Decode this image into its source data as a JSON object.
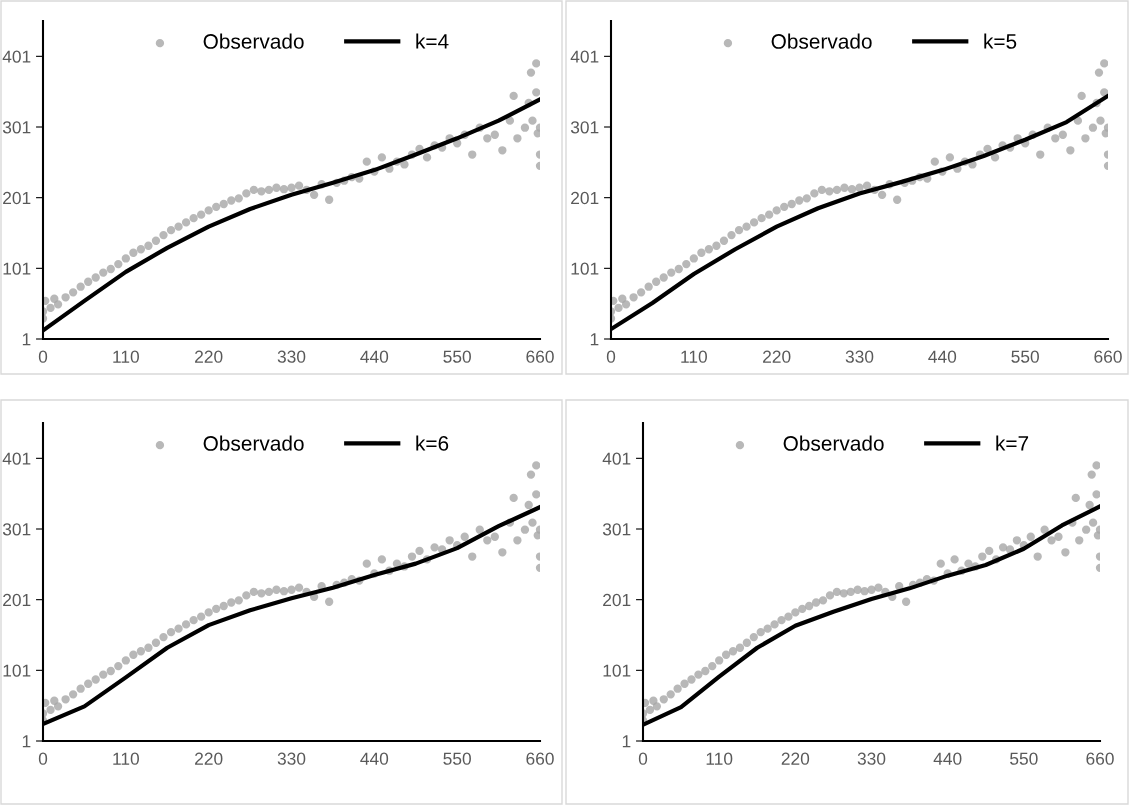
{
  "chart_data": [
    {
      "type": "scatter",
      "xlim": [
        0,
        660
      ],
      "ylim": [
        1,
        451
      ],
      "xticks": [
        0,
        110,
        220,
        330,
        440,
        550,
        660
      ],
      "yticks": [
        1,
        101,
        201,
        301,
        401
      ],
      "grid": false,
      "legend": "top",
      "marker": "circle",
      "series": [
        {
          "name": "Observado",
          "color": "#a6a6a6",
          "x": [
            0,
            0,
            3,
            10,
            15,
            20,
            30,
            40,
            50,
            60,
            70,
            80,
            90,
            100,
            110,
            120,
            130,
            140,
            150,
            160,
            170,
            180,
            190,
            200,
            210,
            220,
            230,
            240,
            250,
            260,
            270,
            280,
            290,
            300,
            310,
            320,
            330,
            340,
            350,
            360,
            370,
            380,
            390,
            400,
            410,
            420,
            430,
            440,
            450,
            460,
            470,
            480,
            490,
            500,
            510,
            520,
            530,
            540,
            550,
            560,
            570,
            580,
            590,
            600,
            610,
            620,
            625,
            630,
            640,
            645,
            648,
            650,
            655,
            655,
            657,
            660,
            660,
            660
          ],
          "values": [
            40,
            30,
            55,
            45,
            58,
            50,
            60,
            67,
            75,
            82,
            88,
            95,
            100,
            107,
            115,
            123,
            128,
            133,
            140,
            148,
            155,
            160,
            166,
            172,
            177,
            183,
            188,
            192,
            197,
            200,
            207,
            212,
            210,
            212,
            215,
            213,
            215,
            218,
            212,
            205,
            220,
            198,
            222,
            225,
            230,
            228,
            252,
            238,
            258,
            242,
            252,
            248,
            262,
            270,
            258,
            275,
            272,
            285,
            278,
            290,
            262,
            300,
            285,
            290,
            268,
            310,
            345,
            285,
            300,
            335,
            378,
            310,
            350,
            391,
            292,
            300,
            262,
            246
          ]
        },
        {
          "name": "k=4",
          "type": "line",
          "marker": "none",
          "color": "#000000",
          "x": [
            0,
            55,
            110,
            165,
            220,
            275,
            330,
            385,
            440,
            495,
            550,
            605,
            660
          ],
          "values": [
            13,
            55,
            96,
            130,
            160,
            185,
            205,
            222,
            240,
            262,
            285,
            310,
            340
          ]
        }
      ]
    },
    {
      "type": "scatter",
      "xlim": [
        0,
        660
      ],
      "ylim": [
        1,
        451
      ],
      "xticks": [
        0,
        110,
        220,
        330,
        440,
        550,
        660
      ],
      "yticks": [
        1,
        101,
        201,
        301,
        401
      ],
      "grid": false,
      "legend": "top",
      "marker": "circle",
      "series": [
        {
          "name": "Observado",
          "color": "#a6a6a6",
          "x": [
            0,
            0,
            3,
            10,
            15,
            20,
            30,
            40,
            50,
            60,
            70,
            80,
            90,
            100,
            110,
            120,
            130,
            140,
            150,
            160,
            170,
            180,
            190,
            200,
            210,
            220,
            230,
            240,
            250,
            260,
            270,
            280,
            290,
            300,
            310,
            320,
            330,
            340,
            350,
            360,
            370,
            380,
            390,
            400,
            410,
            420,
            430,
            440,
            450,
            460,
            470,
            480,
            490,
            500,
            510,
            520,
            530,
            540,
            550,
            560,
            570,
            580,
            590,
            600,
            610,
            620,
            625,
            630,
            640,
            645,
            648,
            650,
            655,
            655,
            657,
            660,
            660,
            660
          ],
          "values": [
            40,
            30,
            55,
            45,
            58,
            50,
            60,
            67,
            75,
            82,
            88,
            95,
            100,
            107,
            115,
            123,
            128,
            133,
            140,
            148,
            155,
            160,
            166,
            172,
            177,
            183,
            188,
            192,
            197,
            200,
            207,
            212,
            210,
            212,
            215,
            213,
            215,
            218,
            212,
            205,
            220,
            198,
            222,
            225,
            230,
            228,
            252,
            238,
            258,
            242,
            252,
            248,
            262,
            270,
            258,
            275,
            272,
            285,
            278,
            290,
            262,
            300,
            285,
            290,
            268,
            310,
            345,
            285,
            300,
            335,
            378,
            310,
            350,
            391,
            292,
            300,
            262,
            246
          ]
        },
        {
          "name": "k=5",
          "type": "line",
          "marker": "none",
          "color": "#000000",
          "x": [
            0,
            55,
            110,
            165,
            220,
            275,
            330,
            385,
            440,
            495,
            550,
            605,
            660
          ],
          "values": [
            15,
            52,
            93,
            128,
            160,
            186,
            207,
            223,
            240,
            260,
            283,
            308,
            345
          ]
        }
      ]
    },
    {
      "type": "scatter",
      "xlim": [
        0,
        660
      ],
      "ylim": [
        1,
        451
      ],
      "xticks": [
        0,
        110,
        220,
        330,
        440,
        550,
        660
      ],
      "yticks": [
        1,
        101,
        201,
        301,
        401
      ],
      "grid": false,
      "legend": "top",
      "marker": "circle",
      "series": [
        {
          "name": "Observado",
          "color": "#a6a6a6",
          "x": [
            0,
            0,
            3,
            10,
            15,
            20,
            30,
            40,
            50,
            60,
            70,
            80,
            90,
            100,
            110,
            120,
            130,
            140,
            150,
            160,
            170,
            180,
            190,
            200,
            210,
            220,
            230,
            240,
            250,
            260,
            270,
            280,
            290,
            300,
            310,
            320,
            330,
            340,
            350,
            360,
            370,
            380,
            390,
            400,
            410,
            420,
            430,
            440,
            450,
            460,
            470,
            480,
            490,
            500,
            510,
            520,
            530,
            540,
            550,
            560,
            570,
            580,
            590,
            600,
            610,
            620,
            625,
            630,
            640,
            645,
            648,
            650,
            655,
            655,
            657,
            660,
            660,
            660
          ],
          "values": [
            40,
            30,
            55,
            45,
            58,
            50,
            60,
            67,
            75,
            82,
            88,
            95,
            100,
            107,
            115,
            123,
            128,
            133,
            140,
            148,
            155,
            160,
            166,
            172,
            177,
            183,
            188,
            192,
            197,
            200,
            207,
            212,
            210,
            212,
            215,
            213,
            215,
            218,
            212,
            205,
            220,
            198,
            222,
            225,
            230,
            228,
            252,
            238,
            258,
            242,
            252,
            248,
            262,
            270,
            258,
            275,
            272,
            285,
            278,
            290,
            262,
            300,
            285,
            290,
            268,
            310,
            345,
            285,
            300,
            335,
            378,
            310,
            350,
            391,
            292,
            300,
            262,
            246
          ]
        },
        {
          "name": "k=6",
          "type": "line",
          "marker": "none",
          "color": "#000000",
          "x": [
            0,
            55,
            110,
            165,
            220,
            275,
            330,
            385,
            440,
            495,
            550,
            605,
            660
          ],
          "values": [
            25,
            50,
            91,
            133,
            165,
            186,
            203,
            218,
            236,
            252,
            274,
            305,
            332
          ]
        }
      ]
    },
    {
      "type": "scatter",
      "xlim": [
        0,
        660
      ],
      "ylim": [
        1,
        451
      ],
      "xticks": [
        0,
        110,
        220,
        330,
        440,
        550,
        660
      ],
      "yticks": [
        1,
        101,
        201,
        301,
        401
      ],
      "grid": false,
      "legend": "top",
      "marker": "circle",
      "series": [
        {
          "name": "Observado",
          "color": "#a6a6a6",
          "x": [
            0,
            0,
            3,
            10,
            15,
            20,
            30,
            40,
            50,
            60,
            70,
            80,
            90,
            100,
            110,
            120,
            130,
            140,
            150,
            160,
            170,
            180,
            190,
            200,
            210,
            220,
            230,
            240,
            250,
            260,
            270,
            280,
            290,
            300,
            310,
            320,
            330,
            340,
            350,
            360,
            370,
            380,
            390,
            400,
            410,
            420,
            430,
            440,
            450,
            460,
            470,
            480,
            490,
            500,
            510,
            520,
            530,
            540,
            550,
            560,
            570,
            580,
            590,
            600,
            610,
            620,
            625,
            630,
            640,
            645,
            648,
            650,
            655,
            655,
            657,
            660,
            660,
            660
          ],
          "values": [
            40,
            30,
            55,
            45,
            58,
            50,
            60,
            67,
            75,
            82,
            88,
            95,
            100,
            107,
            115,
            123,
            128,
            133,
            140,
            148,
            155,
            160,
            166,
            172,
            177,
            183,
            188,
            192,
            197,
            200,
            207,
            212,
            210,
            212,
            215,
            213,
            215,
            218,
            212,
            205,
            220,
            198,
            222,
            225,
            230,
            228,
            252,
            238,
            258,
            242,
            252,
            248,
            262,
            270,
            258,
            275,
            272,
            285,
            278,
            290,
            262,
            300,
            285,
            290,
            268,
            310,
            345,
            285,
            300,
            335,
            378,
            310,
            350,
            391,
            292,
            300,
            262,
            246
          ]
        },
        {
          "name": "k=7",
          "type": "line",
          "marker": "none",
          "color": "#000000",
          "x": [
            0,
            55,
            110,
            165,
            220,
            275,
            330,
            385,
            440,
            495,
            550,
            605,
            660
          ],
          "values": [
            24,
            49,
            92,
            133,
            164,
            184,
            202,
            217,
            235,
            250,
            273,
            306,
            333
          ]
        }
      ]
    }
  ]
}
